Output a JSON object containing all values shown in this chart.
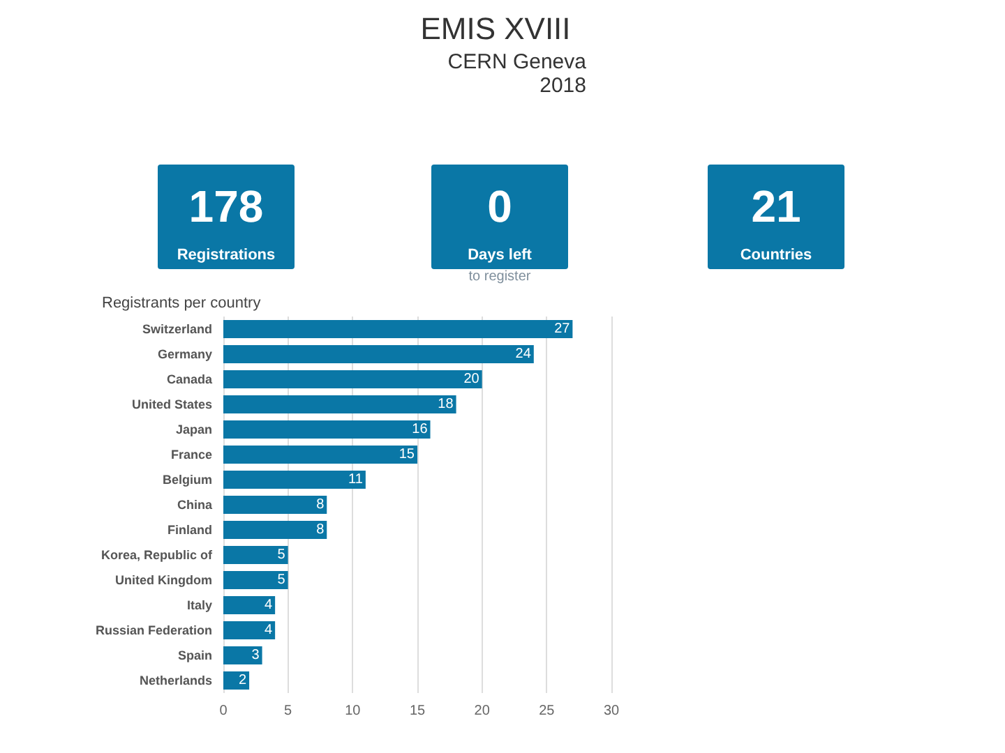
{
  "chart_data": [
    {
      "type": "other",
      "title": "EMIS XVIII",
      "subtitle": "CERN Geneva 2018",
      "categories": [
        "Registrations",
        "Days left",
        "Countries"
      ],
      "values": [
        178,
        0,
        21
      ],
      "color": "#0a77a6",
      "data_labels": true,
      "annotations": [
        {
          "text": "to register",
          "x": "Days left"
        }
      ]
    },
    {
      "type": "bar",
      "orientation": "horizontal",
      "title": "Registrants per country",
      "categories": [
        "Switzerland",
        "Germany",
        "Canada",
        "United States",
        "Japan",
        "France",
        "Belgium",
        "China",
        "Finland",
        "Korea, Republic of",
        "United Kingdom",
        "Italy",
        "Russian Federation",
        "Spain",
        "Netherlands"
      ],
      "values": [
        27,
        24,
        20,
        18,
        16,
        15,
        11,
        8,
        8,
        5,
        5,
        4,
        4,
        3,
        2
      ],
      "color": "#0a77a6",
      "xlim": [
        0,
        30
      ],
      "xticks": [
        0,
        5,
        10,
        15,
        20,
        25,
        30
      ],
      "grid": "x",
      "data_labels": true
    }
  ]
}
